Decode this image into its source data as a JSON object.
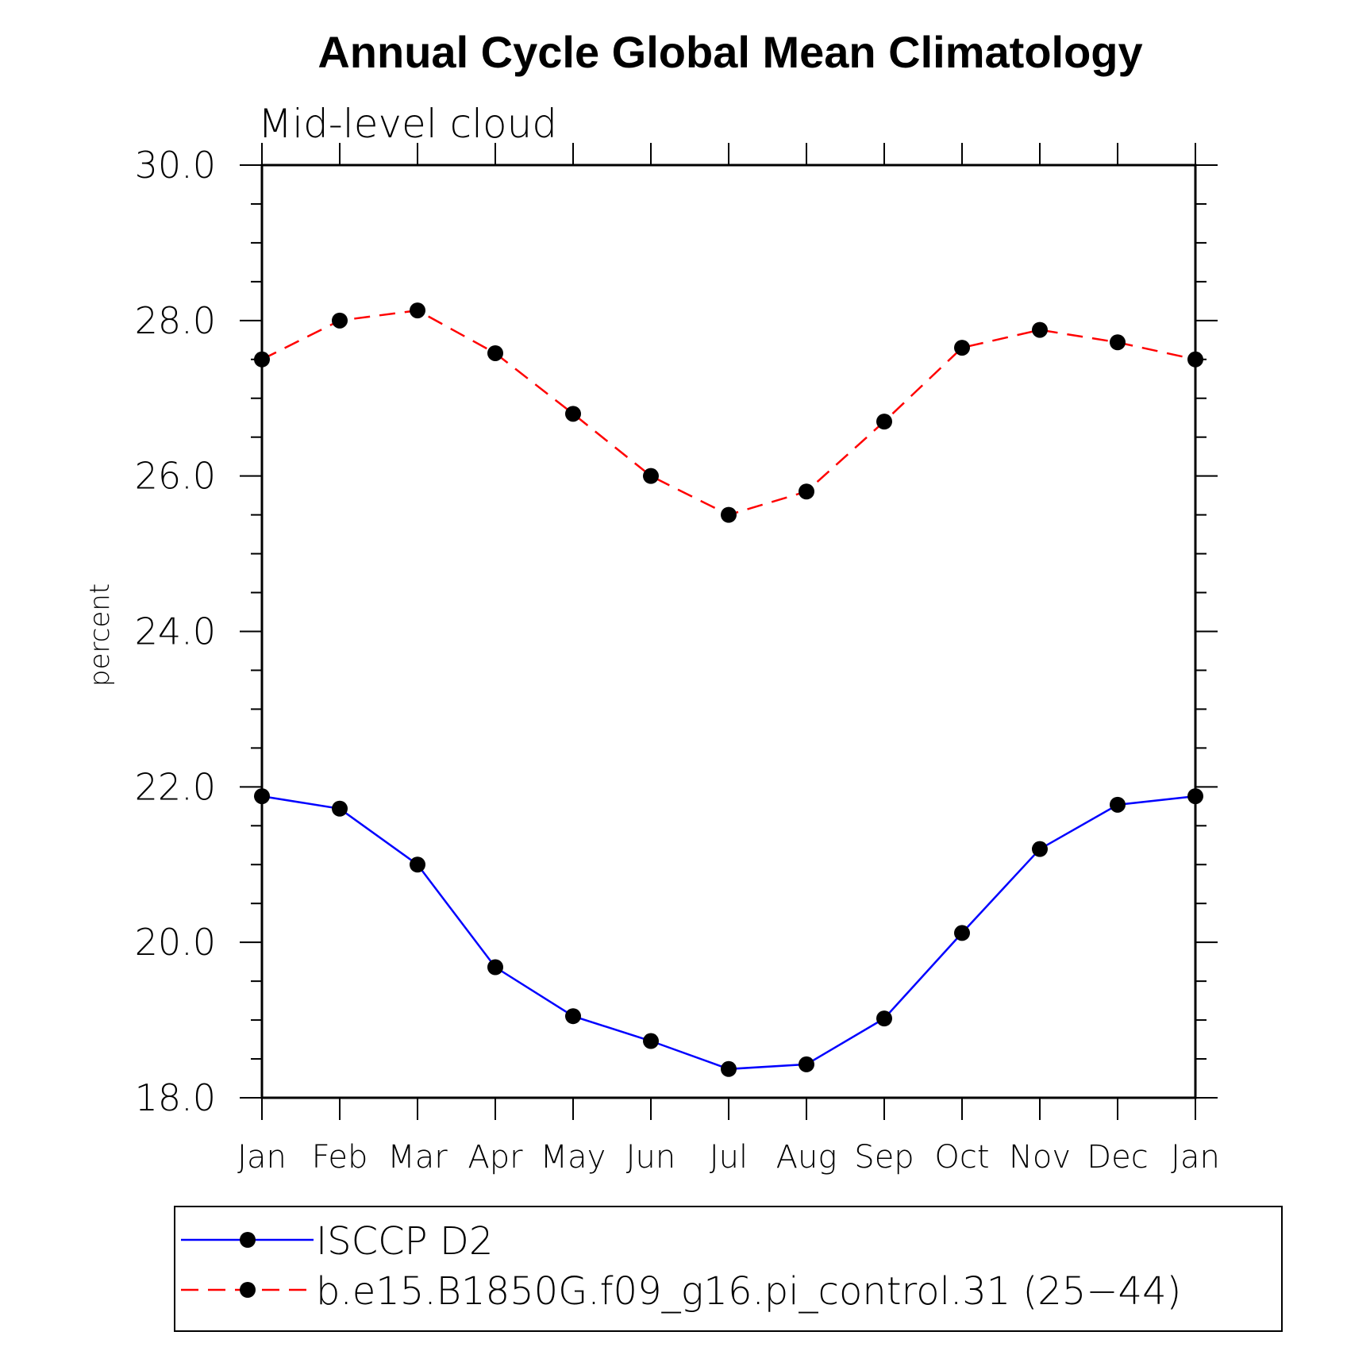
{
  "chart_data": {
    "type": "line",
    "title": "Annual Cycle Global Mean Climatology",
    "subtitle": "Mid-level cloud",
    "xlabel": "",
    "ylabel": "percent",
    "ylim": [
      18,
      30
    ],
    "yticks": [
      "18.0",
      "20.0",
      "22.0",
      "24.0",
      "26.0",
      "28.0",
      "30.0"
    ],
    "categories": [
      "Jan",
      "Feb",
      "Mar",
      "Apr",
      "May",
      "Jun",
      "Jul",
      "Aug",
      "Sep",
      "Oct",
      "Nov",
      "Dec",
      "Jan"
    ],
    "grid": false,
    "legend_position": "bottom",
    "series": [
      {
        "name": "ISCCP D2",
        "color": "#0000ff",
        "line_style": "solid",
        "marker": "filled-circle",
        "values": [
          21.88,
          21.72,
          21.0,
          19.68,
          19.05,
          18.73,
          18.37,
          18.43,
          19.02,
          20.12,
          21.2,
          21.77,
          21.88
        ]
      },
      {
        "name": "b.e15.B1850G.f09_g16.pi_control.31 (25−44)",
        "color": "#ff0000",
        "line_style": "dashed",
        "marker": "filled-circle",
        "values": [
          27.5,
          28.0,
          28.13,
          27.58,
          26.8,
          26.0,
          25.5,
          25.8,
          26.7,
          27.65,
          27.88,
          27.72,
          27.5
        ]
      }
    ]
  }
}
